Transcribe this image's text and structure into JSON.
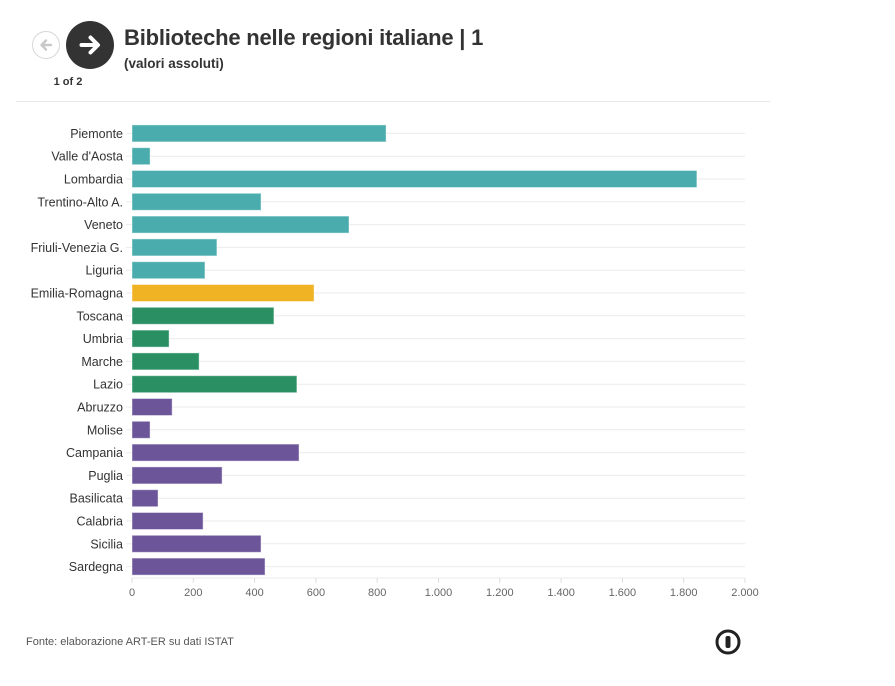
{
  "navigation": {
    "prev_icon": "arrow-left-icon",
    "next_icon": "arrow-right-icon",
    "counter": "1 of 2"
  },
  "header": {
    "title": "Biblioteche nelle regioni italiane | 1",
    "subtitle": "(valori assoluti)"
  },
  "footer": {
    "source": "Fonte: elaborazione ART-ER su dati ISTAT",
    "logo_icon": "flourish-logo-icon"
  },
  "colors": {
    "nord_ovest_est": "#4aacac",
    "emilia_romagna": "#f0b323",
    "centro": "#2a9064",
    "sud_isole": "#6c5699",
    "grid": "#ebebeb",
    "axis_text": "#666666",
    "label_text": "#333333"
  },
  "chart_data": {
    "type": "bar",
    "orientation": "horizontal",
    "title": "Biblioteche nelle regioni italiane | 1",
    "subtitle": "(valori assoluti)",
    "xlabel": "",
    "ylabel": "",
    "xlim": [
      0,
      2000
    ],
    "xticks": [
      0,
      200,
      400,
      600,
      800,
      1000,
      1200,
      1400,
      1600,
      1800,
      2000
    ],
    "xtick_labels": [
      "0",
      "200",
      "400",
      "600",
      "800",
      "1.000",
      "1.200",
      "1.400",
      "1.600",
      "1.800",
      "2.000"
    ],
    "grid": true,
    "categories": [
      "Piemonte",
      "Valle d'Aosta",
      "Lombardia",
      "Trentino-Alto A.",
      "Veneto",
      "Friuli-Venezia G.",
      "Liguria",
      "Emilia-Romagna",
      "Toscana",
      "Umbria",
      "Marche",
      "Lazio",
      "Abruzzo",
      "Molise",
      "Campania",
      "Puglia",
      "Basilicata",
      "Calabria",
      "Sicilia",
      "Sardegna"
    ],
    "values": [
      829,
      59,
      1843,
      421,
      708,
      277,
      238,
      594,
      463,
      121,
      219,
      538,
      131,
      59,
      545,
      294,
      85,
      232,
      421,
      434
    ],
    "groups": [
      "nord_ovest_est",
      "nord_ovest_est",
      "nord_ovest_est",
      "nord_ovest_est",
      "nord_ovest_est",
      "nord_ovest_est",
      "nord_ovest_est",
      "emilia_romagna",
      "centro",
      "centro",
      "centro",
      "centro",
      "sud_isole",
      "sud_isole",
      "sud_isole",
      "sud_isole",
      "sud_isole",
      "sud_isole",
      "sud_isole",
      "sud_isole"
    ],
    "source": "Fonte: elaborazione ART-ER su dati ISTAT"
  }
}
